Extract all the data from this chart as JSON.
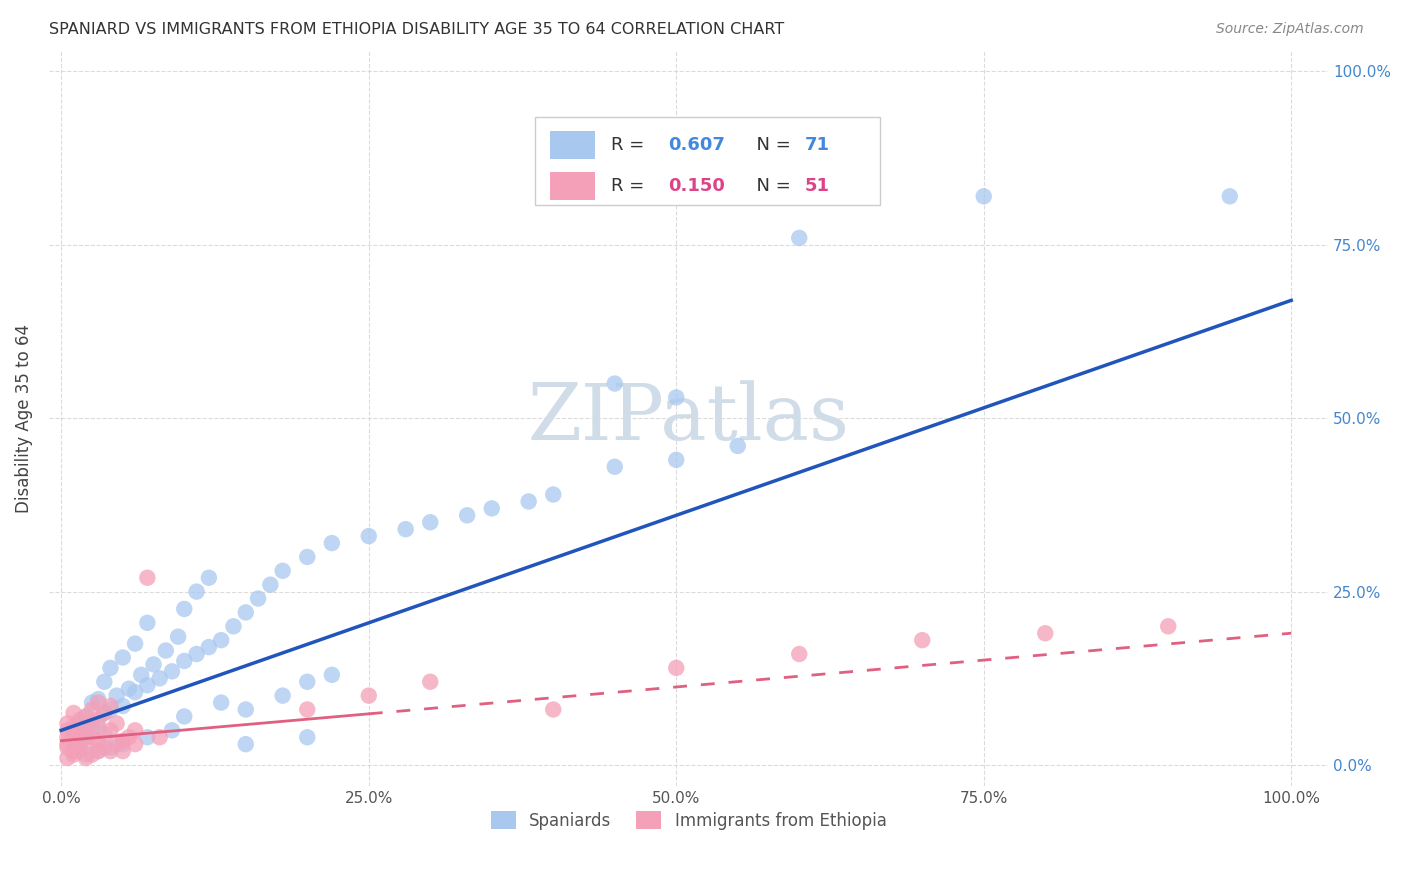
{
  "title": "SPANIARD VS IMMIGRANTS FROM ETHIOPIA DISABILITY AGE 35 TO 64 CORRELATION CHART",
  "source": "Source: ZipAtlas.com",
  "ylabel": "Disability Age 35 to 64",
  "spaniards_color": "#a8c8f0",
  "spaniards_edge": "#7aaed8",
  "ethiopia_color": "#f4a0b8",
  "ethiopia_edge": "#e07898",
  "trend_blue": "#2255bb",
  "trend_pink": "#e06080",
  "blue_scatter": [
    [
      1.0,
      2.0
    ],
    [
      1.5,
      3.0
    ],
    [
      2.0,
      4.0
    ],
    [
      1.0,
      4.5
    ],
    [
      2.5,
      5.0
    ],
    [
      3.0,
      5.5
    ],
    [
      1.5,
      6.0
    ],
    [
      2.0,
      7.0
    ],
    [
      3.5,
      7.5
    ],
    [
      4.0,
      8.0
    ],
    [
      5.0,
      8.5
    ],
    [
      2.5,
      9.0
    ],
    [
      3.0,
      9.5
    ],
    [
      4.5,
      10.0
    ],
    [
      6.0,
      10.5
    ],
    [
      5.5,
      11.0
    ],
    [
      7.0,
      11.5
    ],
    [
      3.5,
      12.0
    ],
    [
      8.0,
      12.5
    ],
    [
      6.5,
      13.0
    ],
    [
      9.0,
      13.5
    ],
    [
      4.0,
      14.0
    ],
    [
      7.5,
      14.5
    ],
    [
      10.0,
      15.0
    ],
    [
      5.0,
      15.5
    ],
    [
      11.0,
      16.0
    ],
    [
      8.5,
      16.5
    ],
    [
      12.0,
      17.0
    ],
    [
      6.0,
      17.5
    ],
    [
      13.0,
      18.0
    ],
    [
      9.5,
      18.5
    ],
    [
      14.0,
      20.0
    ],
    [
      7.0,
      20.5
    ],
    [
      15.0,
      22.0
    ],
    [
      10.0,
      22.5
    ],
    [
      16.0,
      24.0
    ],
    [
      11.0,
      25.0
    ],
    [
      17.0,
      26.0
    ],
    [
      12.0,
      27.0
    ],
    [
      18.0,
      28.0
    ],
    [
      20.0,
      30.0
    ],
    [
      22.0,
      32.0
    ],
    [
      25.0,
      33.0
    ],
    [
      28.0,
      34.0
    ],
    [
      30.0,
      35.0
    ],
    [
      33.0,
      36.0
    ],
    [
      35.0,
      37.0
    ],
    [
      38.0,
      38.0
    ],
    [
      40.0,
      39.0
    ],
    [
      45.0,
      43.0
    ],
    [
      50.0,
      44.0
    ],
    [
      55.0,
      46.0
    ],
    [
      3.0,
      2.0
    ],
    [
      5.0,
      3.0
    ],
    [
      7.0,
      4.0
    ],
    [
      9.0,
      5.0
    ],
    [
      15.0,
      8.0
    ],
    [
      18.0,
      10.0
    ],
    [
      20.0,
      12.0
    ],
    [
      22.0,
      13.0
    ],
    [
      10.0,
      7.0
    ],
    [
      13.0,
      9.0
    ],
    [
      60.0,
      76.0
    ],
    [
      75.0,
      82.0
    ],
    [
      95.0,
      82.0
    ],
    [
      45.0,
      55.0
    ],
    [
      50.0,
      53.0
    ],
    [
      20.0,
      4.0
    ],
    [
      15.0,
      3.0
    ],
    [
      2.0,
      1.5
    ],
    [
      4.0,
      2.5
    ]
  ],
  "ethiopia_scatter": [
    [
      0.5,
      1.0
    ],
    [
      1.0,
      1.5
    ],
    [
      1.5,
      2.0
    ],
    [
      0.5,
      2.5
    ],
    [
      2.0,
      1.0
    ],
    [
      1.0,
      2.0
    ],
    [
      2.5,
      1.5
    ],
    [
      0.5,
      3.0
    ],
    [
      1.5,
      3.0
    ],
    [
      3.0,
      2.0
    ],
    [
      2.0,
      3.5
    ],
    [
      1.0,
      4.0
    ],
    [
      3.5,
      2.5
    ],
    [
      0.5,
      4.0
    ],
    [
      2.5,
      4.0
    ],
    [
      4.0,
      2.0
    ],
    [
      1.5,
      4.5
    ],
    [
      3.0,
      3.5
    ],
    [
      0.5,
      5.0
    ],
    [
      2.0,
      5.0
    ],
    [
      4.5,
      3.0
    ],
    [
      1.0,
      5.5
    ],
    [
      3.5,
      4.5
    ],
    [
      5.0,
      3.5
    ],
    [
      2.5,
      6.0
    ],
    [
      1.5,
      6.5
    ],
    [
      4.0,
      5.0
    ],
    [
      0.5,
      6.0
    ],
    [
      3.0,
      6.5
    ],
    [
      5.5,
      4.0
    ],
    [
      2.0,
      7.0
    ],
    [
      4.5,
      6.0
    ],
    [
      1.0,
      7.5
    ],
    [
      6.0,
      5.0
    ],
    [
      3.5,
      7.5
    ],
    [
      20.0,
      8.0
    ],
    [
      25.0,
      10.0
    ],
    [
      30.0,
      12.0
    ],
    [
      7.0,
      27.0
    ],
    [
      40.0,
      8.0
    ],
    [
      50.0,
      14.0
    ],
    [
      2.5,
      8.0
    ],
    [
      3.0,
      9.0
    ],
    [
      4.0,
      8.5
    ],
    [
      60.0,
      16.0
    ],
    [
      70.0,
      18.0
    ],
    [
      80.0,
      19.0
    ],
    [
      90.0,
      20.0
    ],
    [
      5.0,
      2.0
    ],
    [
      6.0,
      3.0
    ],
    [
      8.0,
      4.0
    ]
  ],
  "blue_trend_x0": 0,
  "blue_trend_y0": 5.0,
  "blue_trend_x1": 100,
  "blue_trend_y1": 67.0,
  "pink_trend_x0": 0,
  "pink_trend_y0": 3.5,
  "pink_trend_x1": 100,
  "pink_trend_y1": 19.0,
  "pink_solid_x1": 25,
  "xlim_min": -1,
  "xlim_max": 103,
  "ylim_min": -3,
  "ylim_max": 103,
  "xticks": [
    0,
    25,
    50,
    75,
    100
  ],
  "yticks": [
    0,
    25,
    50,
    75,
    100
  ],
  "xtick_labels": [
    "0.0%",
    "25.0%",
    "50.0%",
    "75.0%",
    "100.0%"
  ],
  "ytick_right_labels": [
    "0.0%",
    "25.0%",
    "50.0%",
    "75.0%",
    "100.0%"
  ],
  "grid_color": "#cccccc",
  "background_color": "#ffffff",
  "legend_R_blue": "0.607",
  "legend_N_blue": "71",
  "legend_R_pink": "0.150",
  "legend_N_pink": "51",
  "legend_val_color_blue": "#4488dd",
  "legend_val_color_pink": "#dd4488",
  "watermark": "ZIPatlas",
  "watermark_color": "#d0dde8"
}
